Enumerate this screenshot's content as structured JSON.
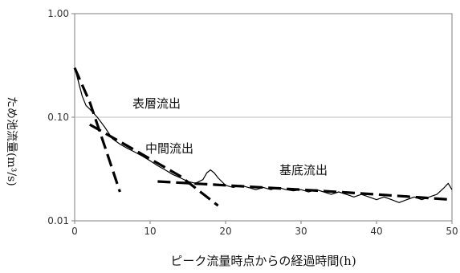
{
  "chart_data": {
    "type": "line",
    "xlabel": "ピーク流量時点からの経過時間(h)",
    "ylabel": "ため池流量(m³/s)",
    "xlim": [
      0,
      50
    ],
    "ylim": [
      0.01,
      1.0
    ],
    "y_scale": "log",
    "grid": "horizontal at decades",
    "legend": "none",
    "x_ticks": [
      "0",
      "10",
      "20",
      "30",
      "40",
      "50"
    ],
    "y_ticks": [
      "0.01",
      "0.10",
      "1.00"
    ],
    "y_tick_values": [
      0.01,
      0.1,
      1.0
    ],
    "annotations": [
      "表層流出",
      "中間流出",
      "基底流出"
    ],
    "colors": {
      "observed": "#000000",
      "components": "#000000",
      "grid": "#bfbfbf",
      "frame": "#7f7f7f"
    },
    "series": [
      {
        "style": "solid",
        "x": [
          0,
          0.5,
          1,
          1.5,
          2,
          3,
          4,
          5,
          6,
          7,
          8,
          9,
          10,
          11,
          12,
          13,
          14,
          15,
          16,
          17,
          17.5,
          18,
          18.5,
          19,
          20,
          21,
          22,
          23,
          24,
          25,
          26,
          27,
          28,
          29,
          30,
          31,
          32,
          33,
          34,
          35,
          36,
          37,
          38,
          39,
          40,
          41,
          42,
          43,
          44,
          45,
          46,
          47,
          48,
          49,
          49.5,
          50
        ],
        "y": [
          0.3,
          0.22,
          0.16,
          0.13,
          0.12,
          0.1,
          0.08,
          0.062,
          0.055,
          0.05,
          0.046,
          0.042,
          0.038,
          0.034,
          0.031,
          0.028,
          0.026,
          0.024,
          0.023,
          0.025,
          0.029,
          0.031,
          0.029,
          0.026,
          0.022,
          0.021,
          0.022,
          0.021,
          0.02,
          0.021,
          0.02,
          0.021,
          0.02,
          0.0195,
          0.02,
          0.019,
          0.02,
          0.019,
          0.018,
          0.019,
          0.018,
          0.017,
          0.018,
          0.017,
          0.016,
          0.017,
          0.016,
          0.015,
          0.016,
          0.017,
          0.016,
          0.017,
          0.018,
          0.021,
          0.023,
          0.02
        ]
      },
      {
        "style": "dashed",
        "x": [
          0,
          2,
          4,
          6
        ],
        "y": [
          0.3,
          0.14,
          0.052,
          0.019
        ]
      },
      {
        "style": "dashed",
        "x": [
          2,
          8,
          14,
          19
        ],
        "y": [
          0.085,
          0.048,
          0.027,
          0.014
        ]
      },
      {
        "style": "dashed",
        "x": [
          11,
          20,
          30,
          40,
          50
        ],
        "y": [
          0.024,
          0.022,
          0.02,
          0.018,
          0.016
        ]
      }
    ]
  }
}
